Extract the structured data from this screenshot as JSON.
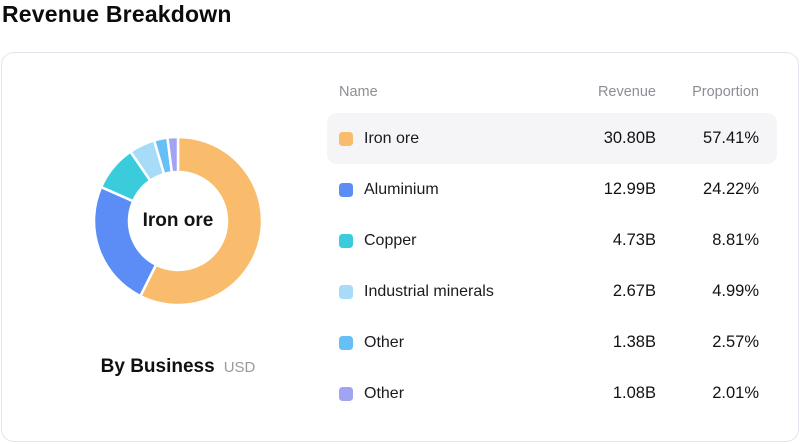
{
  "page": {
    "title": "Revenue Breakdown"
  },
  "table": {
    "headers": {
      "name": "Name",
      "revenue": "Revenue",
      "proportion": "Proportion"
    }
  },
  "chart_data": {
    "type": "pie",
    "donut": true,
    "title": "Revenue Breakdown",
    "center_label": "Iron ore",
    "caption": "By Business",
    "unit": "USD",
    "selected": "Iron ore",
    "legend_position": "right-table",
    "start_angle_deg": -90,
    "direction": "clockwise",
    "series": [
      {
        "name": "Iron ore",
        "revenue": "30.80B",
        "value": 30.8,
        "proportion": "57.41%",
        "proportion_pct": 57.41,
        "color": "#F8BC6C",
        "selected": true
      },
      {
        "name": "Aluminium",
        "revenue": "12.99B",
        "value": 12.99,
        "proportion": "24.22%",
        "proportion_pct": 24.22,
        "color": "#5C8DF6",
        "selected": false
      },
      {
        "name": "Copper",
        "revenue": "4.73B",
        "value": 4.73,
        "proportion": "8.81%",
        "proportion_pct": 8.81,
        "color": "#3BCCDC",
        "selected": false
      },
      {
        "name": "Industrial minerals",
        "revenue": "2.67B",
        "value": 2.67,
        "proportion": "4.99%",
        "proportion_pct": 4.99,
        "color": "#A6DCF8",
        "selected": false
      },
      {
        "name": "Other",
        "revenue": "1.38B",
        "value": 1.38,
        "proportion": "2.57%",
        "proportion_pct": 2.57,
        "color": "#67C0F5",
        "selected": false
      },
      {
        "name": "Other",
        "revenue": "1.08B",
        "value": 1.08,
        "proportion": "2.01%",
        "proportion_pct": 2.01,
        "color": "#A2A4F2",
        "selected": false
      }
    ]
  }
}
